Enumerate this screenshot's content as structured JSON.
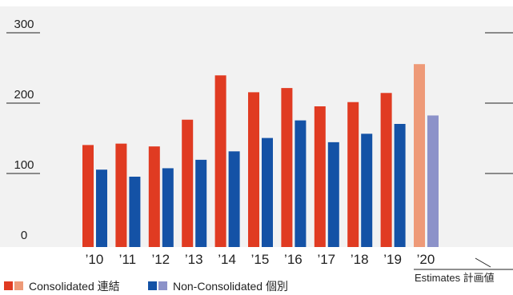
{
  "chart_data": {
    "type": "bar",
    "categories": [
      "’10",
      "’11",
      "’12",
      "’13",
      "’14",
      "’15",
      "’16",
      "’17",
      "’18",
      "’19",
      "’20"
    ],
    "series": [
      {
        "name": "Consolidated 連結",
        "values": [
          145,
          147,
          143,
          181,
          244,
          220,
          226,
          200,
          206,
          219,
          260
        ]
      },
      {
        "name": "Non-Consolidated 個別",
        "values": [
          110,
          100,
          112,
          124,
          136,
          155,
          180,
          149,
          161,
          175,
          187
        ]
      }
    ],
    "estimate_categories": [
      "’20"
    ],
    "estimate_label": "Estimates 計画値",
    "yticks": [
      0,
      100,
      200,
      300
    ],
    "ylim": [
      0,
      330
    ],
    "grid": false,
    "legend_position": "bottom-left",
    "colors": {
      "consolidated": "#e03b22",
      "consolidated_estimate": "#ee9a78",
      "non_consolidated": "#1452a6",
      "non_consolidated_estimate": "#8c92c9",
      "background": "#f2f2f2"
    }
  }
}
